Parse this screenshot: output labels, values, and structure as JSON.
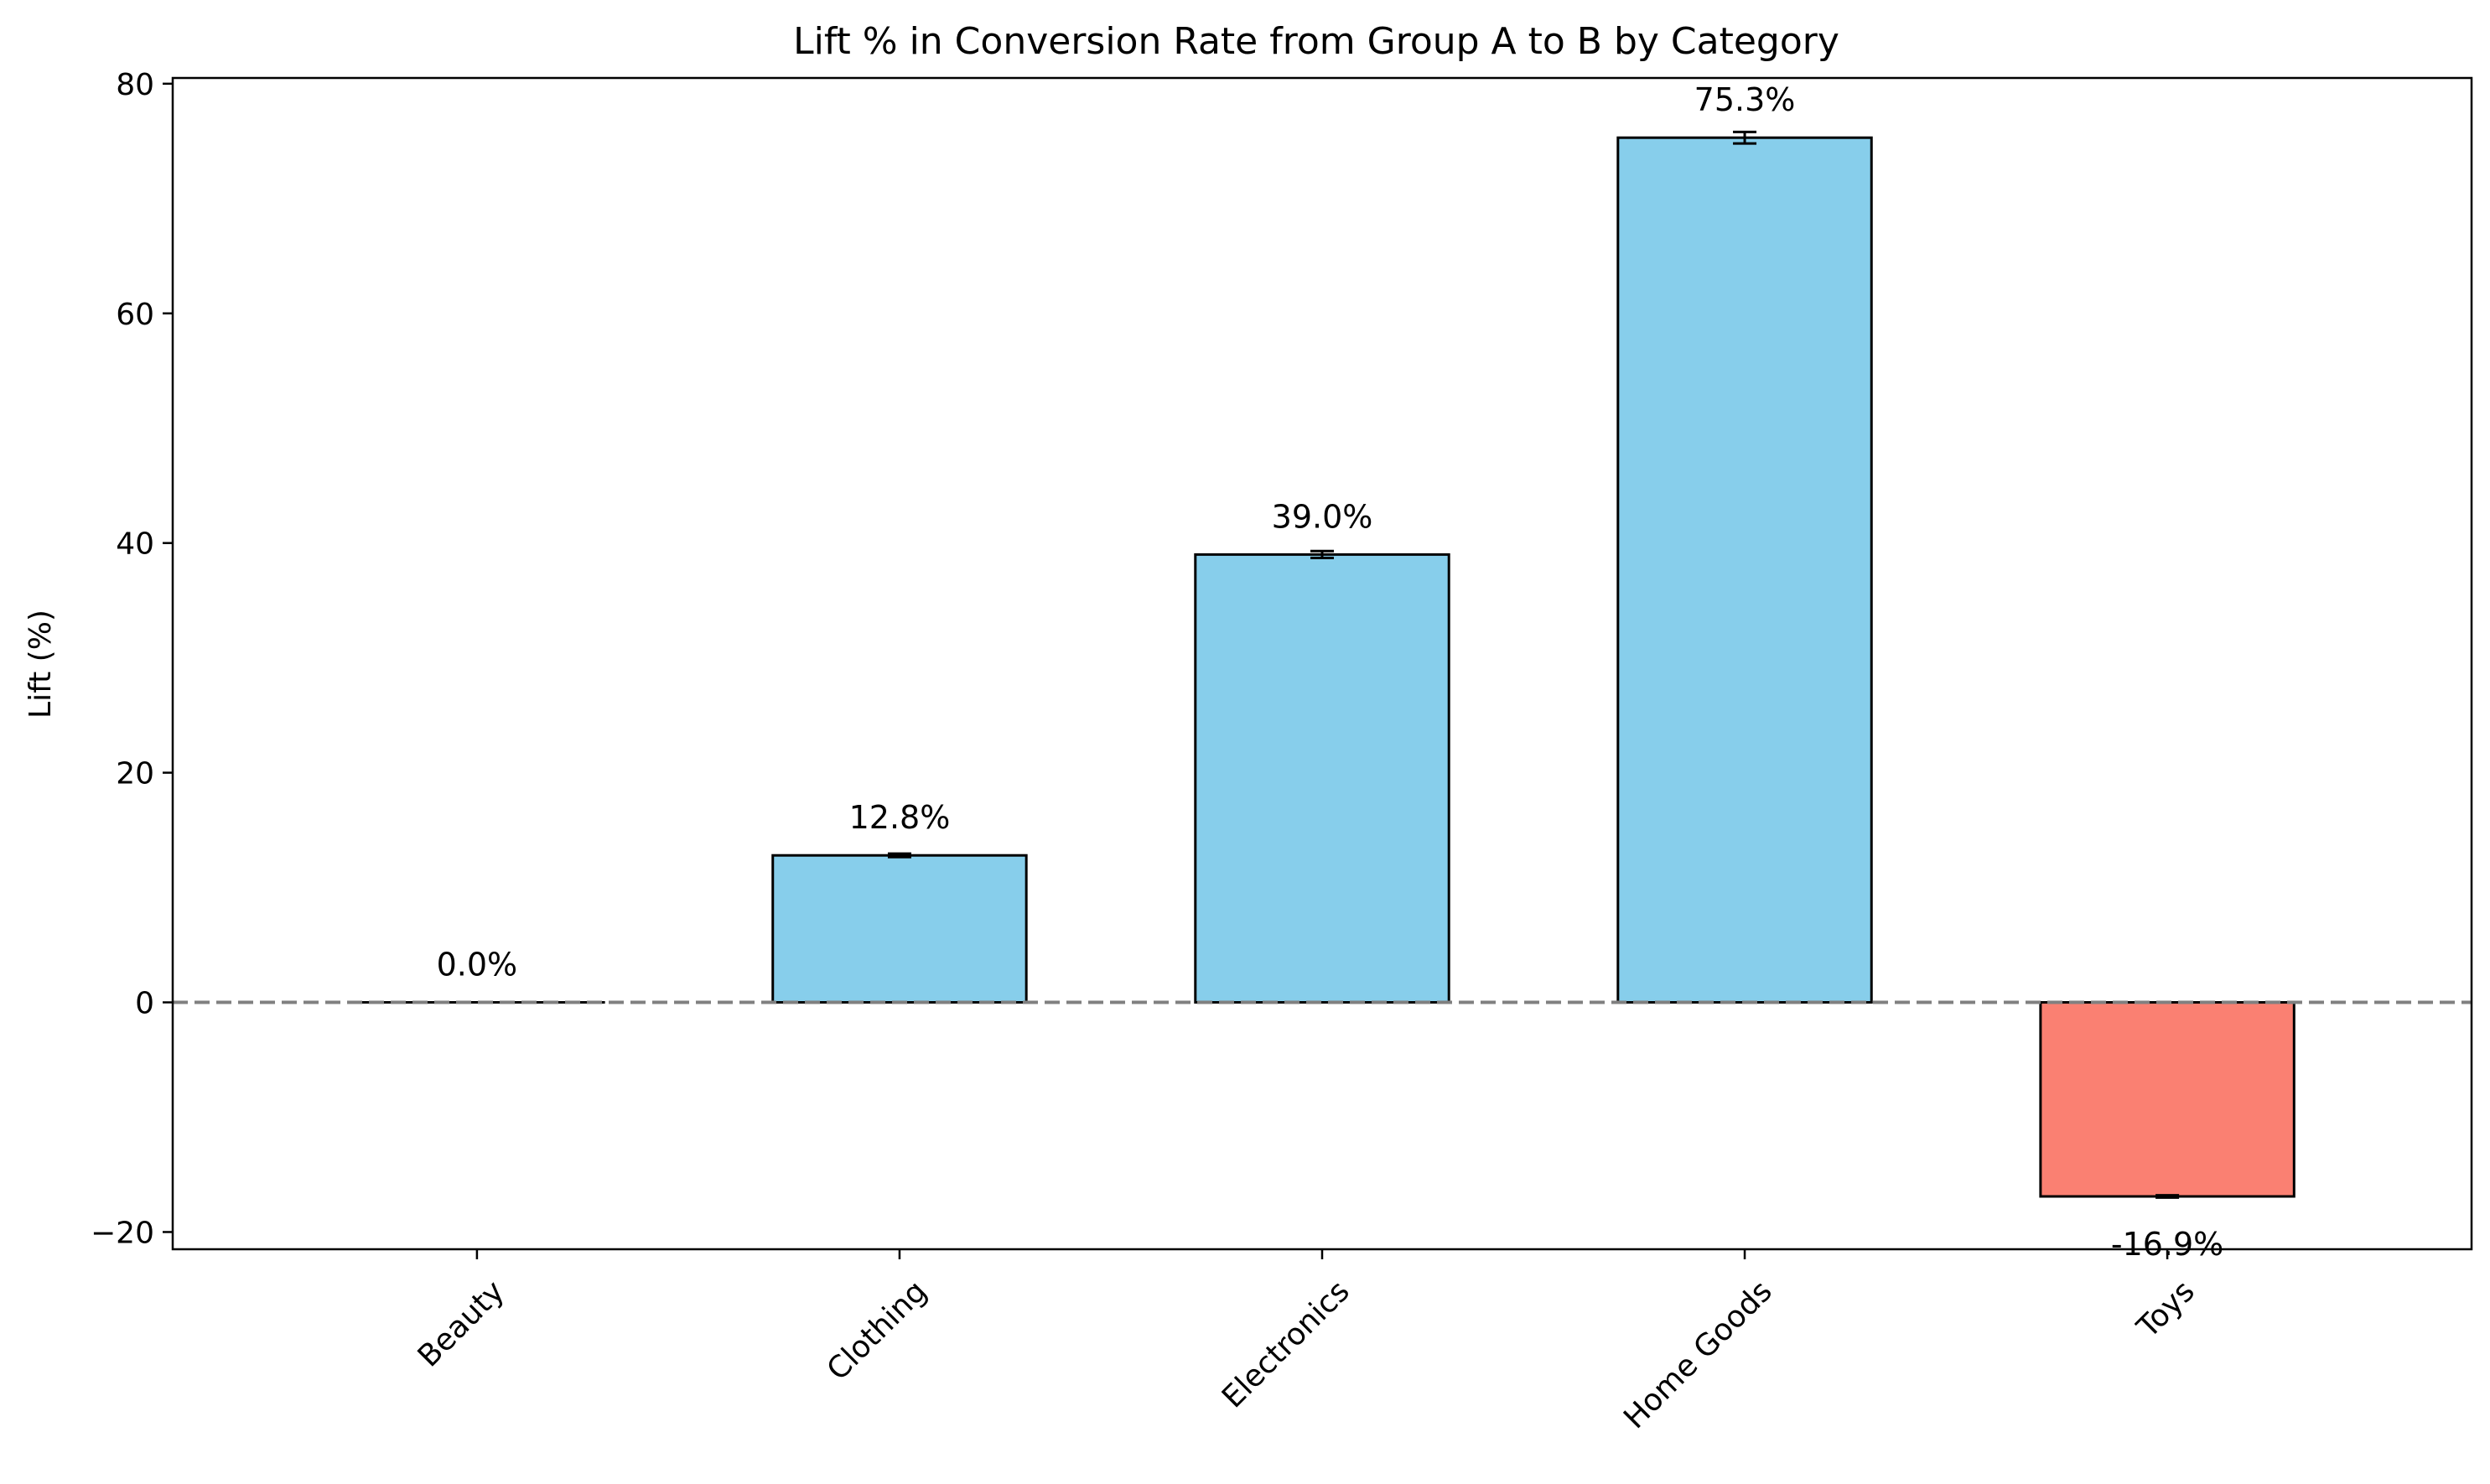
{
  "chart_data": {
    "type": "bar",
    "title": "Lift % in Conversion Rate from Group A to B by Category",
    "xlabel": "",
    "ylabel": "Lift (%)",
    "categories": [
      "Beauty",
      "Clothing",
      "Electronics",
      "Home Goods",
      "Toys"
    ],
    "values": [
      0.0,
      12.8,
      39.0,
      75.3,
      -16.9
    ],
    "error": [
      0.0,
      0.15,
      0.3,
      0.5,
      0.1
    ],
    "value_labels": [
      "0.0%",
      "12.8%",
      "39.0%",
      "75.3%",
      "-16.9%"
    ],
    "ylim": [
      -21.5,
      80.5
    ],
    "yticks": [
      -20,
      0,
      20,
      40,
      60,
      80
    ],
    "ytick_labels": [
      "−20",
      "0",
      "20",
      "40",
      "60",
      "80"
    ],
    "reference_line": {
      "y": 0,
      "style": "dashed",
      "color": "#808080"
    },
    "grid": false,
    "legend": "none",
    "colors": {
      "positive": "#87CEEB",
      "negative": "#FA8072",
      "edge": "#000000"
    }
  }
}
